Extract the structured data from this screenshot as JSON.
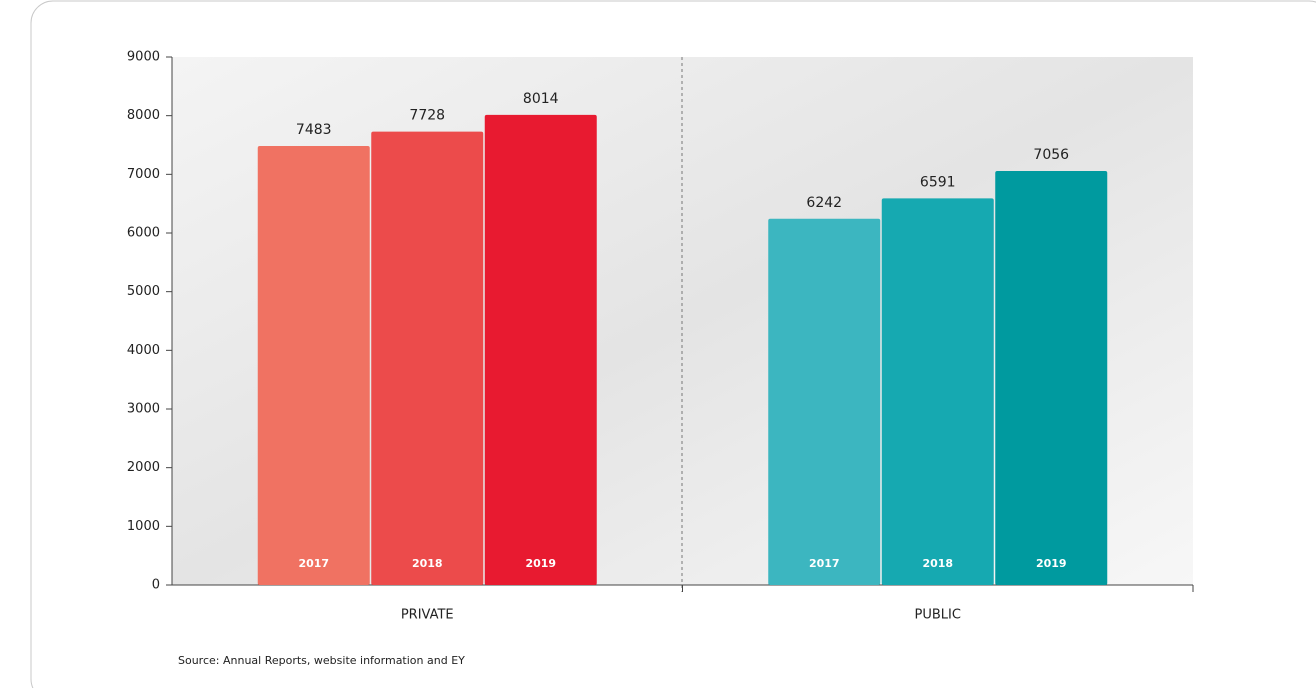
{
  "chart_data": {
    "type": "bar",
    "categories": [
      "PRIVATE",
      "PUBLIC"
    ],
    "series": [
      {
        "name": "2017",
        "colors": [
          "#f07262",
          "#3cb6c0"
        ],
        "values": [
          7483,
          6242
        ]
      },
      {
        "name": "2018",
        "colors": [
          "#ec4b4b",
          "#16a9b1"
        ],
        "values": [
          7728,
          6591
        ]
      },
      {
        "name": "2019",
        "colors": [
          "#e81a30",
          "#009a9f"
        ],
        "values": [
          8014,
          7056
        ]
      }
    ],
    "ylim": [
      0,
      9000
    ],
    "yticks": [
      0,
      1000,
      2000,
      3000,
      4000,
      5000,
      6000,
      7000,
      8000,
      9000
    ],
    "source": "Source: Annual Reports, website information and EY"
  }
}
